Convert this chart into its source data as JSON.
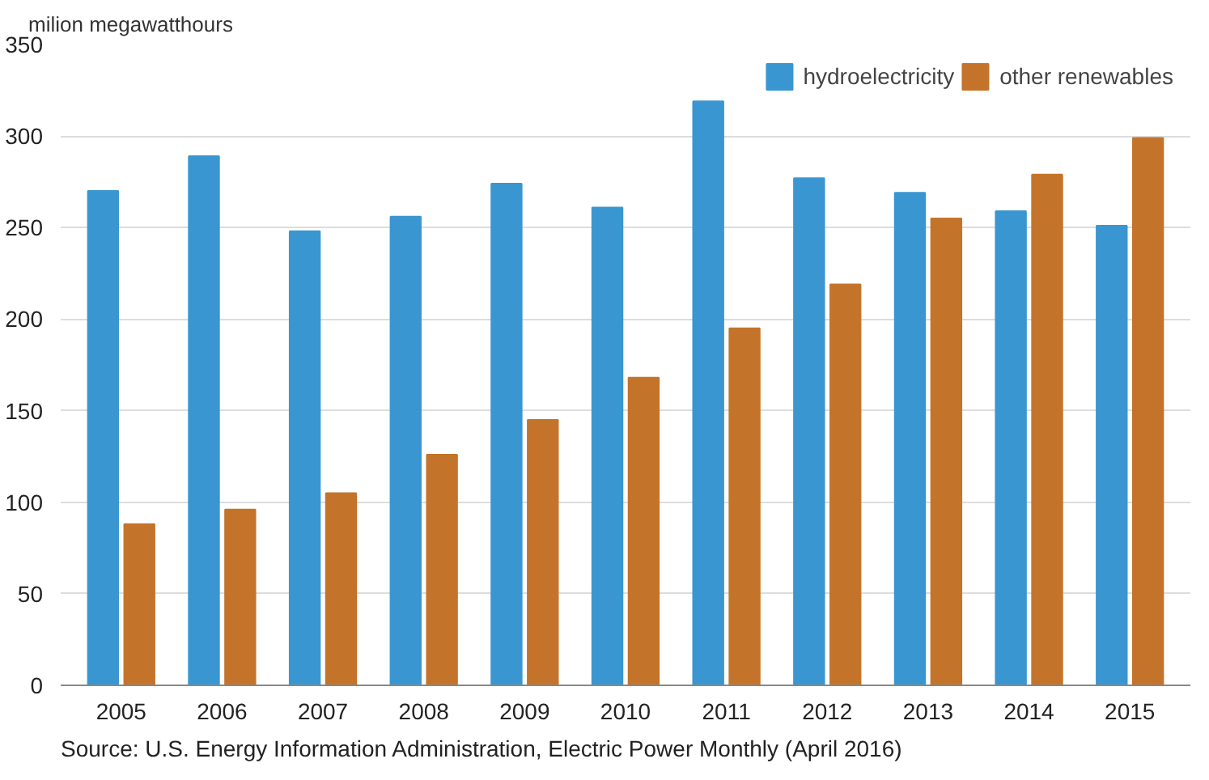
{
  "chart_data": {
    "type": "bar",
    "ylabel": "milion megawatthours",
    "categories": [
      "2005",
      "2006",
      "2007",
      "2008",
      "2009",
      "2010",
      "2011",
      "2012",
      "2013",
      "2014",
      "2015"
    ],
    "series": [
      {
        "name": "hydroelectricity",
        "color": "#3a96d0",
        "values": [
          270,
          289,
          248,
          256,
          274,
          261,
          319,
          277,
          269,
          259,
          251
        ]
      },
      {
        "name": "other renewables",
        "color": "#c4742a",
        "values": [
          88,
          96,
          105,
          126,
          145,
          168,
          195,
          219,
          255,
          279,
          299
        ]
      }
    ],
    "ylim": [
      0,
      350
    ],
    "yticks": [
      0,
      50,
      100,
      150,
      200,
      250,
      300,
      350
    ],
    "grid": "y",
    "legend": "top right",
    "annotations": [
      "Source: U.S. Energy Information Administration, Electric Power Monthly (April 2016)"
    ]
  }
}
